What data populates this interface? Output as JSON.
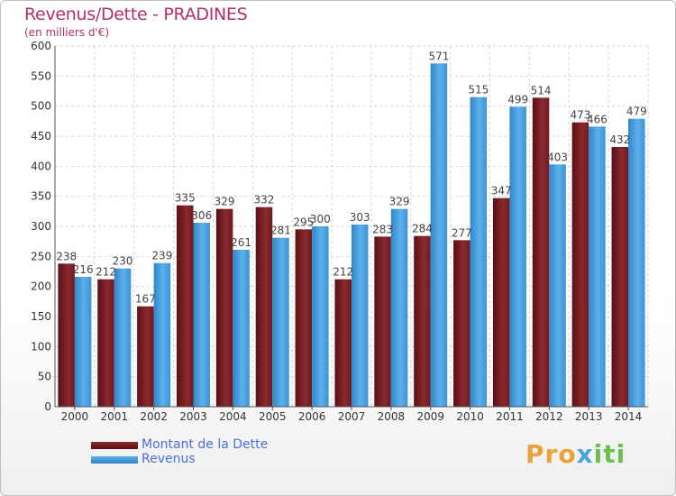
{
  "chart_data": {
    "type": "bar",
    "title": "Revenus/Dette - PRADINES",
    "subtitle": "(en milliers d'€)",
    "categories": [
      "2000",
      "2001",
      "2002",
      "2003",
      "2004",
      "2005",
      "2006",
      "2007",
      "2008",
      "2009",
      "2010",
      "2011",
      "2012",
      "2013",
      "2014"
    ],
    "series": [
      {
        "name": "Montant de la Dette",
        "color": "#7a1f24",
        "values": [
          238,
          212,
          167,
          335,
          329,
          332,
          295,
          212,
          283,
          284,
          277,
          347,
          514,
          473,
          432
        ]
      },
      {
        "name": "Revenus",
        "color": "#4da3e3",
        "values": [
          216,
          230,
          239,
          306,
          261,
          281,
          300,
          303,
          329,
          571,
          515,
          499,
          403,
          466,
          479
        ]
      }
    ],
    "ylim": [
      0,
      600
    ],
    "yticks": [
      0,
      50,
      100,
      150,
      200,
      250,
      300,
      350,
      400,
      450,
      500,
      550,
      600
    ],
    "grid": true,
    "legend": "bottom-left"
  },
  "brand": {
    "text": "Proxiti"
  }
}
